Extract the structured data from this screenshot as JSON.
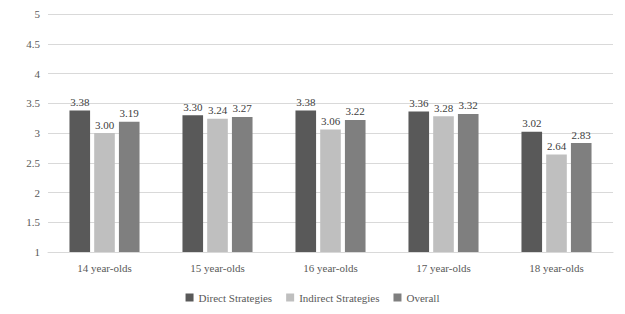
{
  "chart_data": {
    "type": "bar",
    "categories": [
      "14 year-olds",
      "15 year-olds",
      "16 year-olds",
      "17 year-olds",
      "18 year-olds"
    ],
    "series": [
      {
        "name": "Direct Strategies",
        "color": "#595959",
        "values": [
          3.38,
          3.3,
          3.38,
          3.36,
          3.02
        ],
        "value_labels": [
          "3.38",
          "3.30",
          "3.38",
          "3.36",
          "3.02"
        ]
      },
      {
        "name": "Indirect Strategies",
        "color": "#bfbfbf",
        "values": [
          3.0,
          3.24,
          3.06,
          3.28,
          2.64
        ],
        "value_labels": [
          "3.00",
          "3.24",
          "3.06",
          "3.28",
          "2.64"
        ]
      },
      {
        "name": "Overall",
        "color": "#7f7f7f",
        "values": [
          3.19,
          3.27,
          3.22,
          3.32,
          2.83
        ],
        "value_labels": [
          "3.19",
          "3.27",
          "3.22",
          "3.32",
          "2.83"
        ]
      }
    ],
    "ylim": [
      1,
      5
    ],
    "yticks": [
      1,
      1.5,
      2,
      2.5,
      3,
      3.5,
      4,
      4.5,
      5
    ],
    "grid": true,
    "legend": "bottom",
    "data_labels": true
  }
}
